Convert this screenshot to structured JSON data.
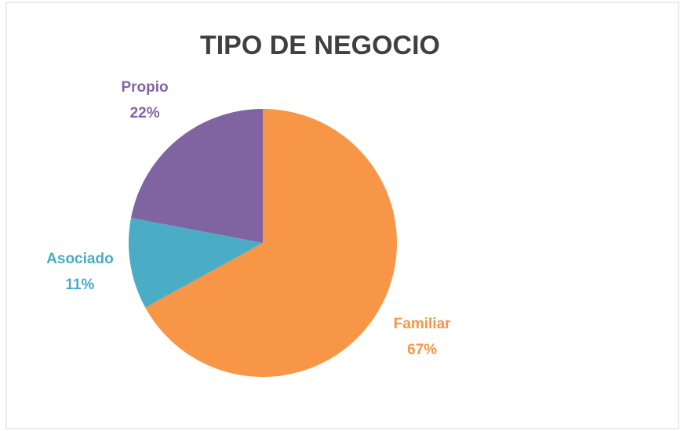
{
  "chart_data": {
    "type": "pie",
    "title": "TIPO DE NEGOCIO",
    "categories": [
      "Familiar",
      "Asociado",
      "Propio"
    ],
    "values": [
      67,
      11,
      22
    ],
    "value_labels": [
      "67%",
      "11%",
      "22%"
    ],
    "colors": [
      "#f79646",
      "#4bacc6",
      "#8064a2"
    ]
  }
}
